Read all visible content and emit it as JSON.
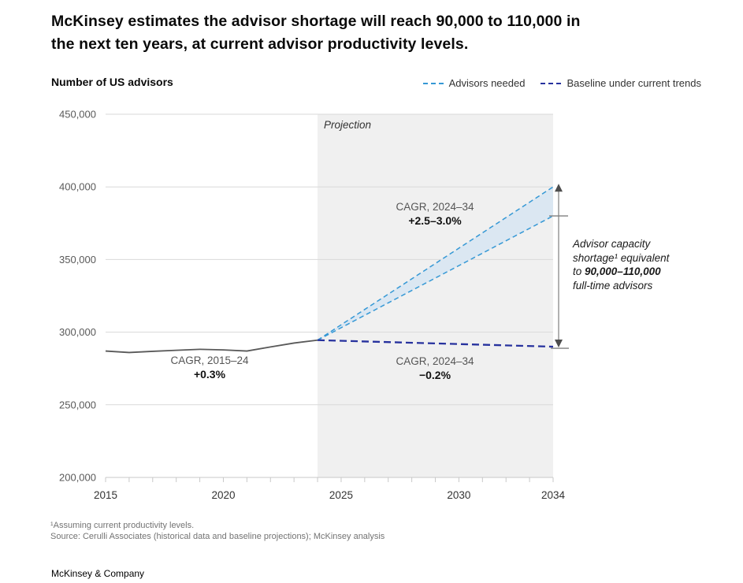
{
  "title": {
    "line1": "McKinsey estimates the advisor shortage will reach 90,000 to 110,000 in",
    "line2": "the next ten years, at current advisor productivity levels."
  },
  "chart_header": {
    "y_axis_title": "Number of US advisors",
    "legend": [
      {
        "label": "Advisors needed",
        "color": "#3598d5",
        "style": "dashed"
      },
      {
        "label": "Baseline under current trends",
        "color": "#27329e",
        "style": "dashed"
      }
    ]
  },
  "chart_data": {
    "type": "line",
    "title": "Number of US advisors",
    "xlabel": "",
    "ylabel": "Number of US advisors",
    "xlim": [
      2015,
      2034
    ],
    "ylim": [
      200000,
      450000
    ],
    "y_ticks": [
      200000,
      250000,
      300000,
      350000,
      400000,
      450000
    ],
    "x_tick_labels": [
      2015,
      2020,
      2025,
      2030,
      2034
    ],
    "grid": true,
    "projection": {
      "start": 2024,
      "end": 2034,
      "label": "Projection",
      "fill": "#f0f0f0"
    },
    "series": [
      {
        "name": "Historical advisors",
        "style": "solid",
        "color": "#595959",
        "x": [
          2015,
          2016,
          2017,
          2018,
          2019,
          2020,
          2021,
          2022,
          2023,
          2024
        ],
        "values": [
          287000,
          286000,
          286800,
          287500,
          288200,
          287800,
          287000,
          289800,
          292500,
          294500
        ]
      },
      {
        "name": "Advisors needed (upper bound)",
        "style": "dashed",
        "color": "#3598d5",
        "x": [
          2024,
          2034
        ],
        "values": [
          294500,
          400000
        ]
      },
      {
        "name": "Advisors needed (lower bound)",
        "style": "dashed",
        "color": "#3598d5",
        "x": [
          2024,
          2034
        ],
        "values": [
          294500,
          380000
        ]
      },
      {
        "name": "Baseline under current trends",
        "style": "dashed",
        "color": "#27329e",
        "x": [
          2024,
          2034
        ],
        "values": [
          294500,
          290000
        ]
      }
    ],
    "band": {
      "between": [
        1,
        2
      ],
      "fill": "#dbe7f2"
    },
    "shortage_arrow": {
      "x": 2034,
      "from": 400000,
      "to": 290000,
      "tick_upper": 380000,
      "tick_lower": 290000,
      "color": "#7f7f7f"
    }
  },
  "annotations": {
    "projection": "Projection",
    "cagr_historical": {
      "line1": "CAGR, 2015–24",
      "line2": "+0.3%"
    },
    "cagr_needed": {
      "line1": "CAGR, 2024–34",
      "line2": "+2.5–3.0%"
    },
    "cagr_baseline": {
      "line1": "CAGR, 2024–34",
      "line2": "−0.2%"
    },
    "shortage_note": {
      "line1": "Advisor capacity",
      "line2": "shortage¹ equivalent",
      "line3_prefix": "to ",
      "line3_bold": "90,000–110,000",
      "line4": "full-time advisors"
    }
  },
  "footnotes": [
    "¹Assuming current productivity levels.",
    "Source: Cerulli Associates (historical data and baseline projections); McKinsey analysis"
  ],
  "footer": {
    "brand": "McKinsey & Company"
  },
  "colors": {
    "grid": "#d9d9d9",
    "axis": "#c8c8c8",
    "y_label": "#595959",
    "x_label": "#333333",
    "projection_fill": "#f0f0f0",
    "band_fill": "#dbe7f2",
    "needed_line": "#3598d5",
    "baseline_line": "#27329e",
    "historical_line": "#595959",
    "arrow": "#7f7f7f"
  }
}
